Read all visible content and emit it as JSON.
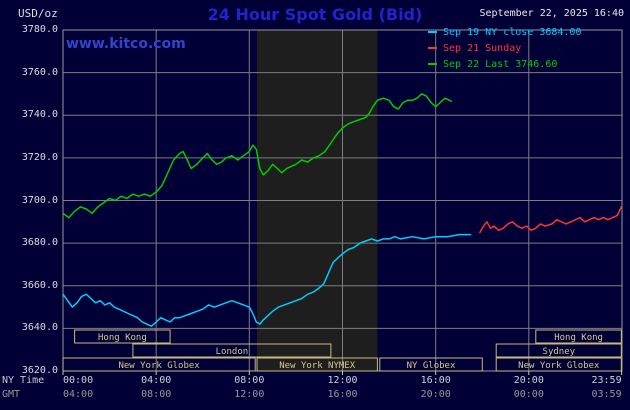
{
  "header": {
    "units_label": "USD/oz",
    "title": "24 Hour Spot Gold (Bid)",
    "datetime": "September 22, 2025 16:40"
  },
  "watermark": "www.kitco.com",
  "legend": [
    {
      "label": "Sep 19 NY close 3684.00",
      "color": "#00ccff"
    },
    {
      "label": "Sep 21 Sunday",
      "color": "#ff3333"
    },
    {
      "label": "Sep 22 Last 3746.60",
      "color": "#00cc00"
    }
  ],
  "colors": {
    "background": "#000036",
    "title_blue": "#2323cd",
    "link_blue": "#3344cc"
  },
  "axes": {
    "y_ticks": [
      {
        "value": 3780,
        "label": "3780.0"
      },
      {
        "value": 3760,
        "label": "3760.0"
      },
      {
        "value": 3740,
        "label": "3740.0"
      },
      {
        "value": 3720,
        "label": "3720.0"
      },
      {
        "value": 3700,
        "label": "3700.0"
      },
      {
        "value": 3680,
        "label": "3680.0"
      },
      {
        "value": 3660,
        "label": "3660.0"
      },
      {
        "value": 3640,
        "label": "3640.0"
      },
      {
        "value": 3620,
        "label": "3620.0"
      }
    ],
    "x_ny": {
      "label": "NY Time",
      "ticks": [
        {
          "t": 0,
          "label": "00:00"
        },
        {
          "t": 4,
          "label": "04:00"
        },
        {
          "t": 8,
          "label": "08:00"
        },
        {
          "t": 12,
          "label": "12:00"
        },
        {
          "t": 16,
          "label": "16:00"
        },
        {
          "t": 20,
          "label": "20:00"
        },
        {
          "t": 23.983,
          "label": "23:59"
        }
      ]
    },
    "x_gmt": {
      "label": "GMT",
      "ticks": [
        {
          "t": 0,
          "label": "04:00"
        },
        {
          "t": 4,
          "label": "08:00"
        },
        {
          "t": 8,
          "label": "12:00"
        },
        {
          "t": 12,
          "label": "16:00"
        },
        {
          "t": 16,
          "label": "20:00"
        },
        {
          "t": 20,
          "label": "00:00"
        },
        {
          "t": 23.983,
          "label": "03:59"
        }
      ]
    }
  },
  "chart_data": {
    "type": "line",
    "title": "24 Hour Spot Gold (Bid)",
    "xlabel": "NY Time",
    "ylabel": "USD/oz",
    "x_axis": {
      "unit": "hours",
      "range": [
        0,
        23.983
      ]
    },
    "y_axis": {
      "range": [
        3620,
        3780
      ],
      "grid_step": 20
    },
    "grid": true,
    "legend_position": "top-right",
    "highlight_band_hours": [
      8.33,
      13.5
    ],
    "colors": {
      "grid": "#7d7d7d",
      "frame": "#999999",
      "band": "#1e1e1e",
      "session": "#c9ba7c",
      "session_text": "#d5c88f",
      "tick": "#cccc66"
    },
    "series": [
      {
        "name": "Sep 19 NY close 3684.00",
        "color": "#00ccff",
        "points": [
          [
            0,
            3656
          ],
          [
            0.2,
            3653
          ],
          [
            0.4,
            3650
          ],
          [
            0.6,
            3652
          ],
          [
            0.8,
            3655
          ],
          [
            1,
            3656
          ],
          [
            1.2,
            3654
          ],
          [
            1.4,
            3652
          ],
          [
            1.6,
            3653
          ],
          [
            1.8,
            3651
          ],
          [
            2,
            3652
          ],
          [
            2.2,
            3650
          ],
          [
            2.4,
            3649
          ],
          [
            2.6,
            3648
          ],
          [
            2.8,
            3647
          ],
          [
            3,
            3646
          ],
          [
            3.2,
            3645
          ],
          [
            3.4,
            3643
          ],
          [
            3.6,
            3642
          ],
          [
            3.8,
            3641
          ],
          [
            4,
            3643
          ],
          [
            4.2,
            3645
          ],
          [
            4.4,
            3644
          ],
          [
            4.6,
            3643
          ],
          [
            4.8,
            3645
          ],
          [
            5,
            3645
          ],
          [
            5.25,
            3646
          ],
          [
            5.5,
            3647
          ],
          [
            5.75,
            3648
          ],
          [
            6,
            3649
          ],
          [
            6.25,
            3651
          ],
          [
            6.5,
            3650
          ],
          [
            6.75,
            3651
          ],
          [
            7,
            3652
          ],
          [
            7.25,
            3653
          ],
          [
            7.5,
            3652
          ],
          [
            7.75,
            3651
          ],
          [
            8,
            3650
          ],
          [
            8.15,
            3647
          ],
          [
            8.3,
            3643
          ],
          [
            8.45,
            3642
          ],
          [
            8.6,
            3644
          ],
          [
            8.8,
            3646
          ],
          [
            9,
            3648
          ],
          [
            9.25,
            3650
          ],
          [
            9.5,
            3651
          ],
          [
            9.75,
            3652
          ],
          [
            10,
            3653
          ],
          [
            10.25,
            3654
          ],
          [
            10.5,
            3656
          ],
          [
            10.75,
            3657
          ],
          [
            11,
            3659
          ],
          [
            11.2,
            3661
          ],
          [
            11.4,
            3666
          ],
          [
            11.6,
            3671
          ],
          [
            11.8,
            3673
          ],
          [
            12,
            3675
          ],
          [
            12.25,
            3677
          ],
          [
            12.5,
            3678
          ],
          [
            12.75,
            3680
          ],
          [
            13,
            3681
          ],
          [
            13.25,
            3682
          ],
          [
            13.5,
            3681
          ],
          [
            13.75,
            3682
          ],
          [
            14,
            3682
          ],
          [
            14.25,
            3683
          ],
          [
            14.5,
            3682
          ],
          [
            15,
            3683
          ],
          [
            15.5,
            3682
          ],
          [
            16,
            3683
          ],
          [
            16.5,
            3683
          ],
          [
            17,
            3684
          ],
          [
            17.5,
            3684
          ]
        ]
      },
      {
        "name": "Sep 21 Sunday",
        "color": "#ff3333",
        "points": [
          [
            17.9,
            3685
          ],
          [
            18.05,
            3688
          ],
          [
            18.2,
            3690
          ],
          [
            18.35,
            3687
          ],
          [
            18.5,
            3688
          ],
          [
            18.7,
            3686
          ],
          [
            18.9,
            3687
          ],
          [
            19.1,
            3689
          ],
          [
            19.3,
            3690
          ],
          [
            19.5,
            3688
          ],
          [
            19.7,
            3687
          ],
          [
            19.9,
            3688
          ],
          [
            20.1,
            3686
          ],
          [
            20.3,
            3687
          ],
          [
            20.5,
            3689
          ],
          [
            20.7,
            3688
          ],
          [
            21,
            3689
          ],
          [
            21.2,
            3691
          ],
          [
            21.4,
            3690
          ],
          [
            21.6,
            3689
          ],
          [
            21.8,
            3690
          ],
          [
            22,
            3691
          ],
          [
            22.2,
            3692
          ],
          [
            22.4,
            3690
          ],
          [
            22.6,
            3691
          ],
          [
            22.8,
            3692
          ],
          [
            23,
            3691
          ],
          [
            23.2,
            3692
          ],
          [
            23.4,
            3691
          ],
          [
            23.6,
            3692
          ],
          [
            23.8,
            3693
          ],
          [
            23.97,
            3697
          ]
        ]
      },
      {
        "name": "Sep 22 Last 3746.60",
        "color": "#00cc00",
        "points": [
          [
            0,
            3694
          ],
          [
            0.25,
            3692
          ],
          [
            0.5,
            3695
          ],
          [
            0.75,
            3697
          ],
          [
            1,
            3696
          ],
          [
            1.25,
            3694
          ],
          [
            1.5,
            3697
          ],
          [
            1.75,
            3699
          ],
          [
            2,
            3701
          ],
          [
            2.25,
            3700
          ],
          [
            2.5,
            3702
          ],
          [
            2.75,
            3701
          ],
          [
            3,
            3703
          ],
          [
            3.25,
            3702
          ],
          [
            3.5,
            3703
          ],
          [
            3.75,
            3702
          ],
          [
            4,
            3704
          ],
          [
            4.25,
            3707
          ],
          [
            4.5,
            3713
          ],
          [
            4.75,
            3719
          ],
          [
            5,
            3722
          ],
          [
            5.15,
            3723
          ],
          [
            5.3,
            3720
          ],
          [
            5.5,
            3715
          ],
          [
            5.75,
            3717
          ],
          [
            6,
            3720
          ],
          [
            6.2,
            3722
          ],
          [
            6.4,
            3719
          ],
          [
            6.6,
            3717
          ],
          [
            6.8,
            3718
          ],
          [
            7,
            3720
          ],
          [
            7.25,
            3721
          ],
          [
            7.5,
            3719
          ],
          [
            7.75,
            3721
          ],
          [
            8,
            3723
          ],
          [
            8.15,
            3726
          ],
          [
            8.3,
            3724
          ],
          [
            8.45,
            3715
          ],
          [
            8.6,
            3712
          ],
          [
            8.8,
            3714
          ],
          [
            9,
            3717
          ],
          [
            9.2,
            3715
          ],
          [
            9.4,
            3713
          ],
          [
            9.6,
            3715
          ],
          [
            9.8,
            3716
          ],
          [
            10,
            3717
          ],
          [
            10.25,
            3719
          ],
          [
            10.5,
            3718
          ],
          [
            10.75,
            3720
          ],
          [
            11,
            3721
          ],
          [
            11.25,
            3723
          ],
          [
            11.5,
            3727
          ],
          [
            11.75,
            3731
          ],
          [
            12,
            3734
          ],
          [
            12.25,
            3736
          ],
          [
            12.5,
            3737
          ],
          [
            12.75,
            3738
          ],
          [
            13,
            3739
          ],
          [
            13.15,
            3741
          ],
          [
            13.3,
            3744
          ],
          [
            13.5,
            3747
          ],
          [
            13.75,
            3748
          ],
          [
            14,
            3747
          ],
          [
            14.2,
            3744
          ],
          [
            14.4,
            3743
          ],
          [
            14.6,
            3746
          ],
          [
            14.8,
            3747
          ],
          [
            15,
            3747
          ],
          [
            15.2,
            3748
          ],
          [
            15.4,
            3750
          ],
          [
            15.6,
            3749
          ],
          [
            15.8,
            3746
          ],
          [
            16,
            3744
          ],
          [
            16.2,
            3746
          ],
          [
            16.4,
            3748
          ],
          [
            16.67,
            3746.6
          ]
        ]
      }
    ],
    "sessions": [
      {
        "label": "Hong Kong",
        "row": 0,
        "start": 0.5,
        "end": 4.6
      },
      {
        "label": "Hong Kong",
        "row": 0,
        "start": 20.3,
        "end": 23.97
      },
      {
        "label": "London",
        "row": 1,
        "start": 3.0,
        "end": 11.5
      },
      {
        "label": "Sydney",
        "row": 1,
        "start": 18.6,
        "end": 23.97
      },
      {
        "label": "New York Globex",
        "row": 2,
        "start": 0,
        "end": 8.25
      },
      {
        "label": "New York NYMEX",
        "row": 2,
        "start": 8.33,
        "end": 13.5
      },
      {
        "label": "NY Globex",
        "row": 2,
        "start": 13.6,
        "end": 18.0
      },
      {
        "label": "New York Globex",
        "row": 2,
        "start": 18.6,
        "end": 23.97
      }
    ]
  }
}
